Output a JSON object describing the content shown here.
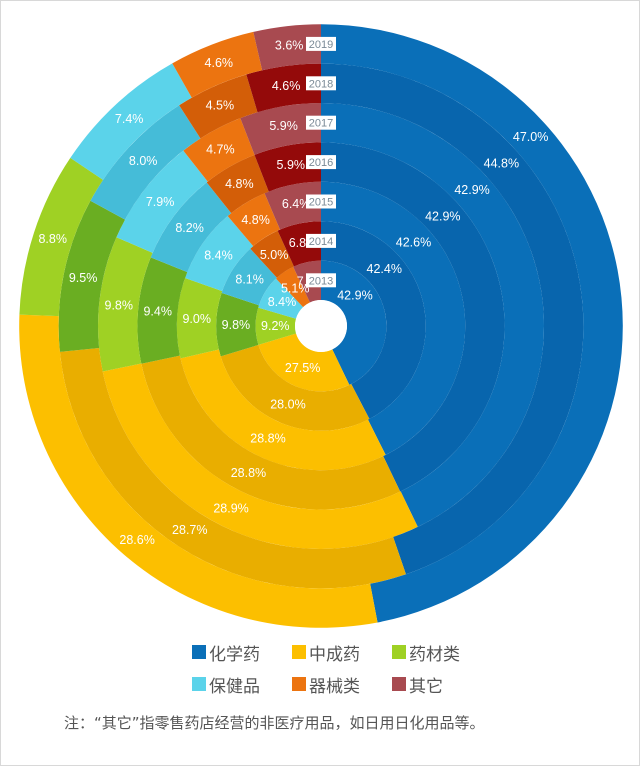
{
  "chart_data": {
    "type": "multi-ring-donut",
    "title": "",
    "rings": [
      "2013",
      "2014",
      "2015",
      "2016",
      "2017",
      "2018",
      "2019"
    ],
    "ring_order": "inner-to-outer",
    "start_angle": "12 o'clock, clockwise",
    "series": [
      {
        "name": "化学药",
        "color": "#0a6fb8",
        "alt_color": "#0865ad",
        "values": [
          42.9,
          42.4,
          42.6,
          42.9,
          42.9,
          44.8,
          47.0
        ],
        "label_angle": 48
      },
      {
        "name": "中成药",
        "color": "#fcbf00",
        "alt_color": "#e9ae00",
        "values": [
          27.5,
          28.0,
          28.8,
          28.8,
          28.9,
          28.7,
          28.6
        ],
        "label_angle": 153
      },
      {
        "name": "药材类",
        "color": "#9fd124",
        "alt_color": "#6aae22",
        "values": [
          9.2,
          9.8,
          9.0,
          9.4,
          9.8,
          9.5,
          8.8
        ],
        "label_angle": 230
      },
      {
        "name": "保健品",
        "color": "#5bd3ea",
        "alt_color": "#45bcd8",
        "values": [
          8.4,
          8.1,
          8.4,
          8.2,
          7.9,
          8.0,
          7.4
        ],
        "label_angle": 258
      },
      {
        "name": "器械类",
        "color": "#ec7410",
        "alt_color": "#d35e08",
        "values": [
          5.1,
          5.0,
          4.8,
          4.8,
          4.7,
          4.5,
          4.6
        ],
        "label_angle": 279
      },
      {
        "name": "其它",
        "color": "#a84a50",
        "alt_color": "#940a0a",
        "values": [
          7.0,
          6.8,
          6.4,
          5.9,
          5.9,
          4.6,
          3.6
        ],
        "label_angle": 301
      }
    ],
    "unit": "%",
    "legend_position": "bottom"
  },
  "legend": {
    "items": [
      {
        "label": "化学药",
        "color": "#0a6fb8"
      },
      {
        "label": "中成药",
        "color": "#fcbf00"
      },
      {
        "label": "药材类",
        "color": "#9fd124"
      },
      {
        "label": "保健品",
        "color": "#5bd3ea"
      },
      {
        "label": "器械类",
        "color": "#ec7410"
      },
      {
        "label": "其它",
        "color": "#a84a50"
      }
    ]
  },
  "note": "注：“其它”指零售药店经营的非医疗用品，如日用日化用品等。"
}
